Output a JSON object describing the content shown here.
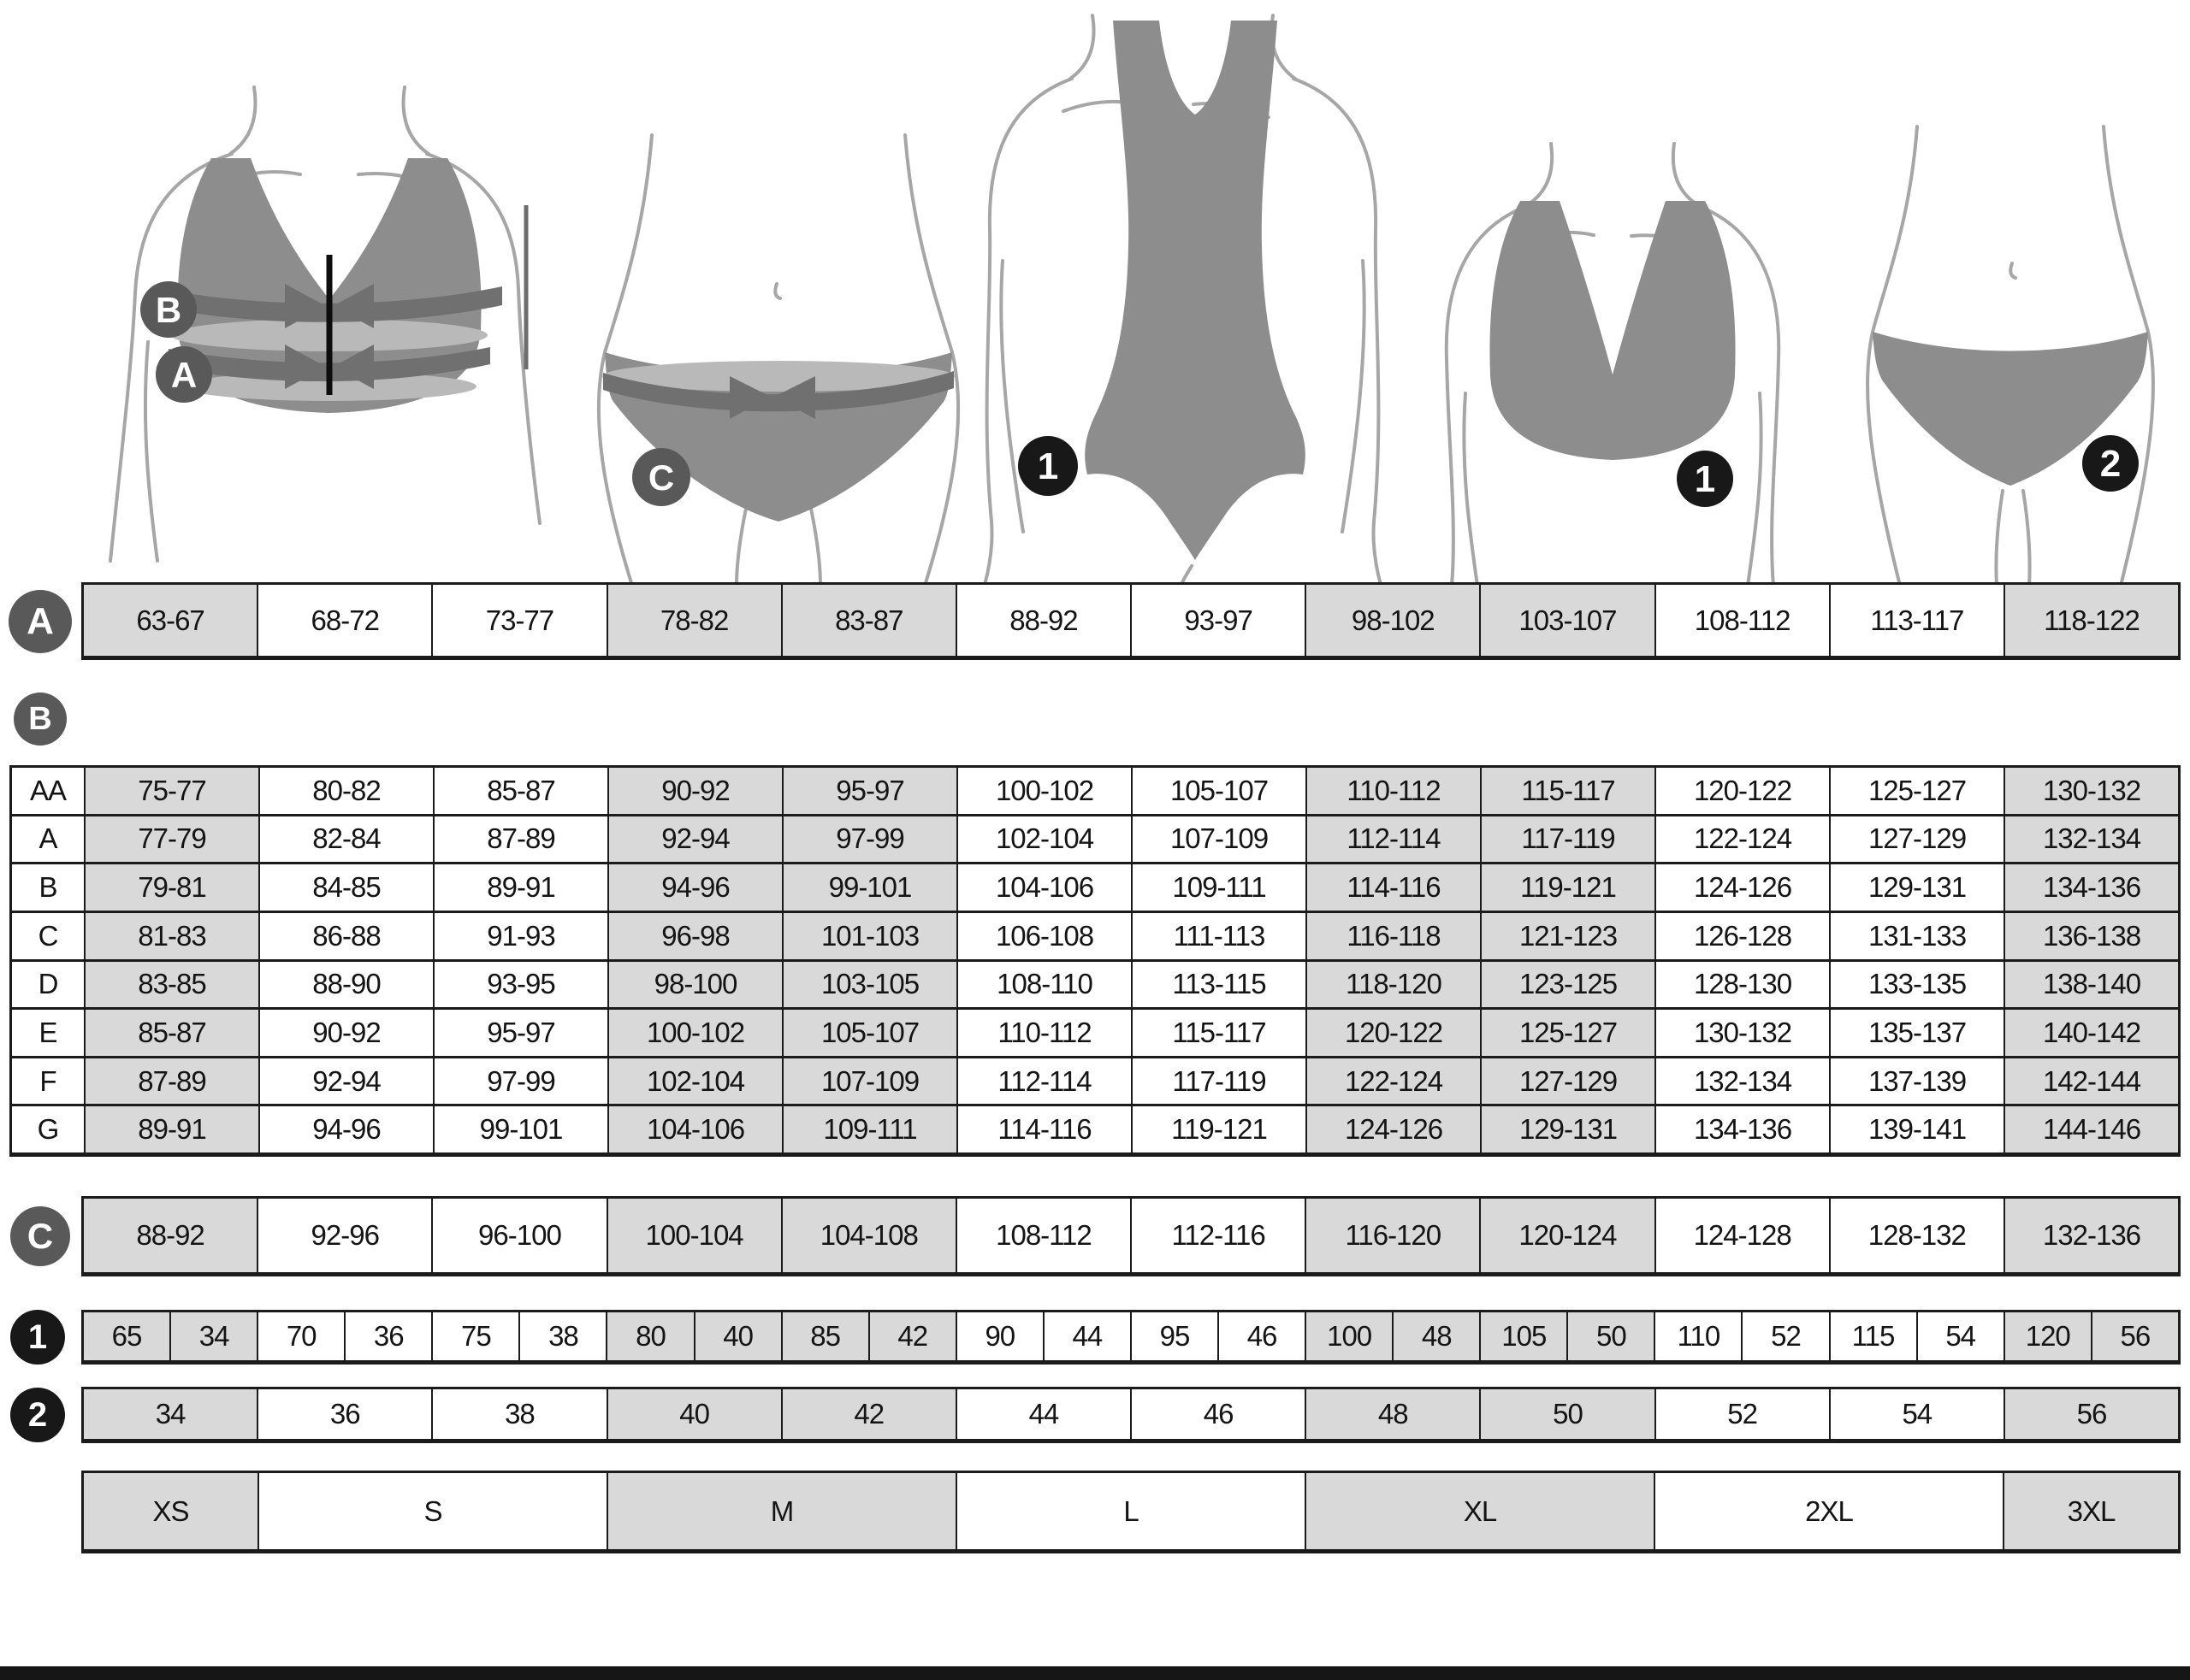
{
  "palette": {
    "shaded_cell": "#d9d9d9",
    "white_cell": "#ffffff",
    "grid_line": "#1b1b1b",
    "letter_badge": "#595959",
    "number_badge": "#181818",
    "garment": "#8d8d8d",
    "measure_band": "#707070",
    "band_highlight": "#b9b9b9",
    "body_outline": "#a6a6a6"
  },
  "figures": {
    "bra_measure": {
      "bust_label": "B",
      "underbust_label": "A"
    },
    "hips_measure": {
      "hips_label": "C"
    },
    "swimsuit": {
      "badge": "1"
    },
    "bra": {
      "badge": "1"
    },
    "panties": {
      "badge": "2"
    }
  },
  "rows": {
    "a": {
      "label": "A",
      "values": [
        "63-67",
        "68-72",
        "73-77",
        "78-82",
        "83-87",
        "88-92",
        "93-97",
        "98-102",
        "103-107",
        "108-112",
        "113-117",
        "118-122"
      ]
    },
    "c": {
      "label": "C",
      "values": [
        "88-92",
        "92-96",
        "96-100",
        "100-104",
        "104-108",
        "108-112",
        "112-116",
        "116-120",
        "120-124",
        "124-128",
        "128-132",
        "132-136"
      ]
    },
    "one": {
      "label": "1",
      "pairs": [
        [
          "65",
          "34"
        ],
        [
          "70",
          "36"
        ],
        [
          "75",
          "38"
        ],
        [
          "80",
          "40"
        ],
        [
          "85",
          "42"
        ],
        [
          "90",
          "44"
        ],
        [
          "95",
          "46"
        ],
        [
          "100",
          "48"
        ],
        [
          "105",
          "50"
        ],
        [
          "110",
          "52"
        ],
        [
          "115",
          "54"
        ],
        [
          "120",
          "56"
        ]
      ]
    },
    "two": {
      "label": "2",
      "values": [
        "34",
        "36",
        "38",
        "40",
        "42",
        "44",
        "46",
        "48",
        "50",
        "52",
        "54",
        "56"
      ]
    }
  },
  "cup_table": {
    "label": "B",
    "rows": [
      {
        "label": "AA",
        "values": [
          "75-77",
          "80-82",
          "85-87",
          "90-92",
          "95-97",
          "100-102",
          "105-107",
          "110-112",
          "115-117",
          "120-122",
          "125-127",
          "130-132"
        ]
      },
      {
        "label": "A",
        "values": [
          "77-79",
          "82-84",
          "87-89",
          "92-94",
          "97-99",
          "102-104",
          "107-109",
          "112-114",
          "117-119",
          "122-124",
          "127-129",
          "132-134"
        ]
      },
      {
        "label": "B",
        "values": [
          "79-81",
          "84-85",
          "89-91",
          "94-96",
          "99-101",
          "104-106",
          "109-111",
          "114-116",
          "119-121",
          "124-126",
          "129-131",
          "134-136"
        ]
      },
      {
        "label": "C",
        "values": [
          "81-83",
          "86-88",
          "91-93",
          "96-98",
          "101-103",
          "106-108",
          "111-113",
          "116-118",
          "121-123",
          "126-128",
          "131-133",
          "136-138"
        ]
      },
      {
        "label": "D",
        "values": [
          "83-85",
          "88-90",
          "93-95",
          "98-100",
          "103-105",
          "108-110",
          "113-115",
          "118-120",
          "123-125",
          "128-130",
          "133-135",
          "138-140"
        ]
      },
      {
        "label": "E",
        "values": [
          "85-87",
          "90-92",
          "95-97",
          "100-102",
          "105-107",
          "110-112",
          "115-117",
          "120-122",
          "125-127",
          "130-132",
          "135-137",
          "140-142"
        ]
      },
      {
        "label": "F",
        "values": [
          "87-89",
          "92-94",
          "97-99",
          "102-104",
          "107-109",
          "112-114",
          "117-119",
          "122-124",
          "127-129",
          "132-134",
          "137-139",
          "142-144"
        ]
      },
      {
        "label": "G",
        "values": [
          "89-91",
          "94-96",
          "99-101",
          "104-106",
          "109-111",
          "114-116",
          "119-121",
          "124-126",
          "129-131",
          "134-136",
          "139-141",
          "144-146"
        ]
      }
    ]
  },
  "sizes": [
    {
      "label": "XS",
      "span": 1
    },
    {
      "label": "S",
      "span": 2
    },
    {
      "label": "M",
      "span": 2
    },
    {
      "label": "L",
      "span": 2
    },
    {
      "label": "XL",
      "span": 2
    },
    {
      "label": "2XL",
      "span": 2
    },
    {
      "label": "3XL",
      "span": 1
    }
  ]
}
